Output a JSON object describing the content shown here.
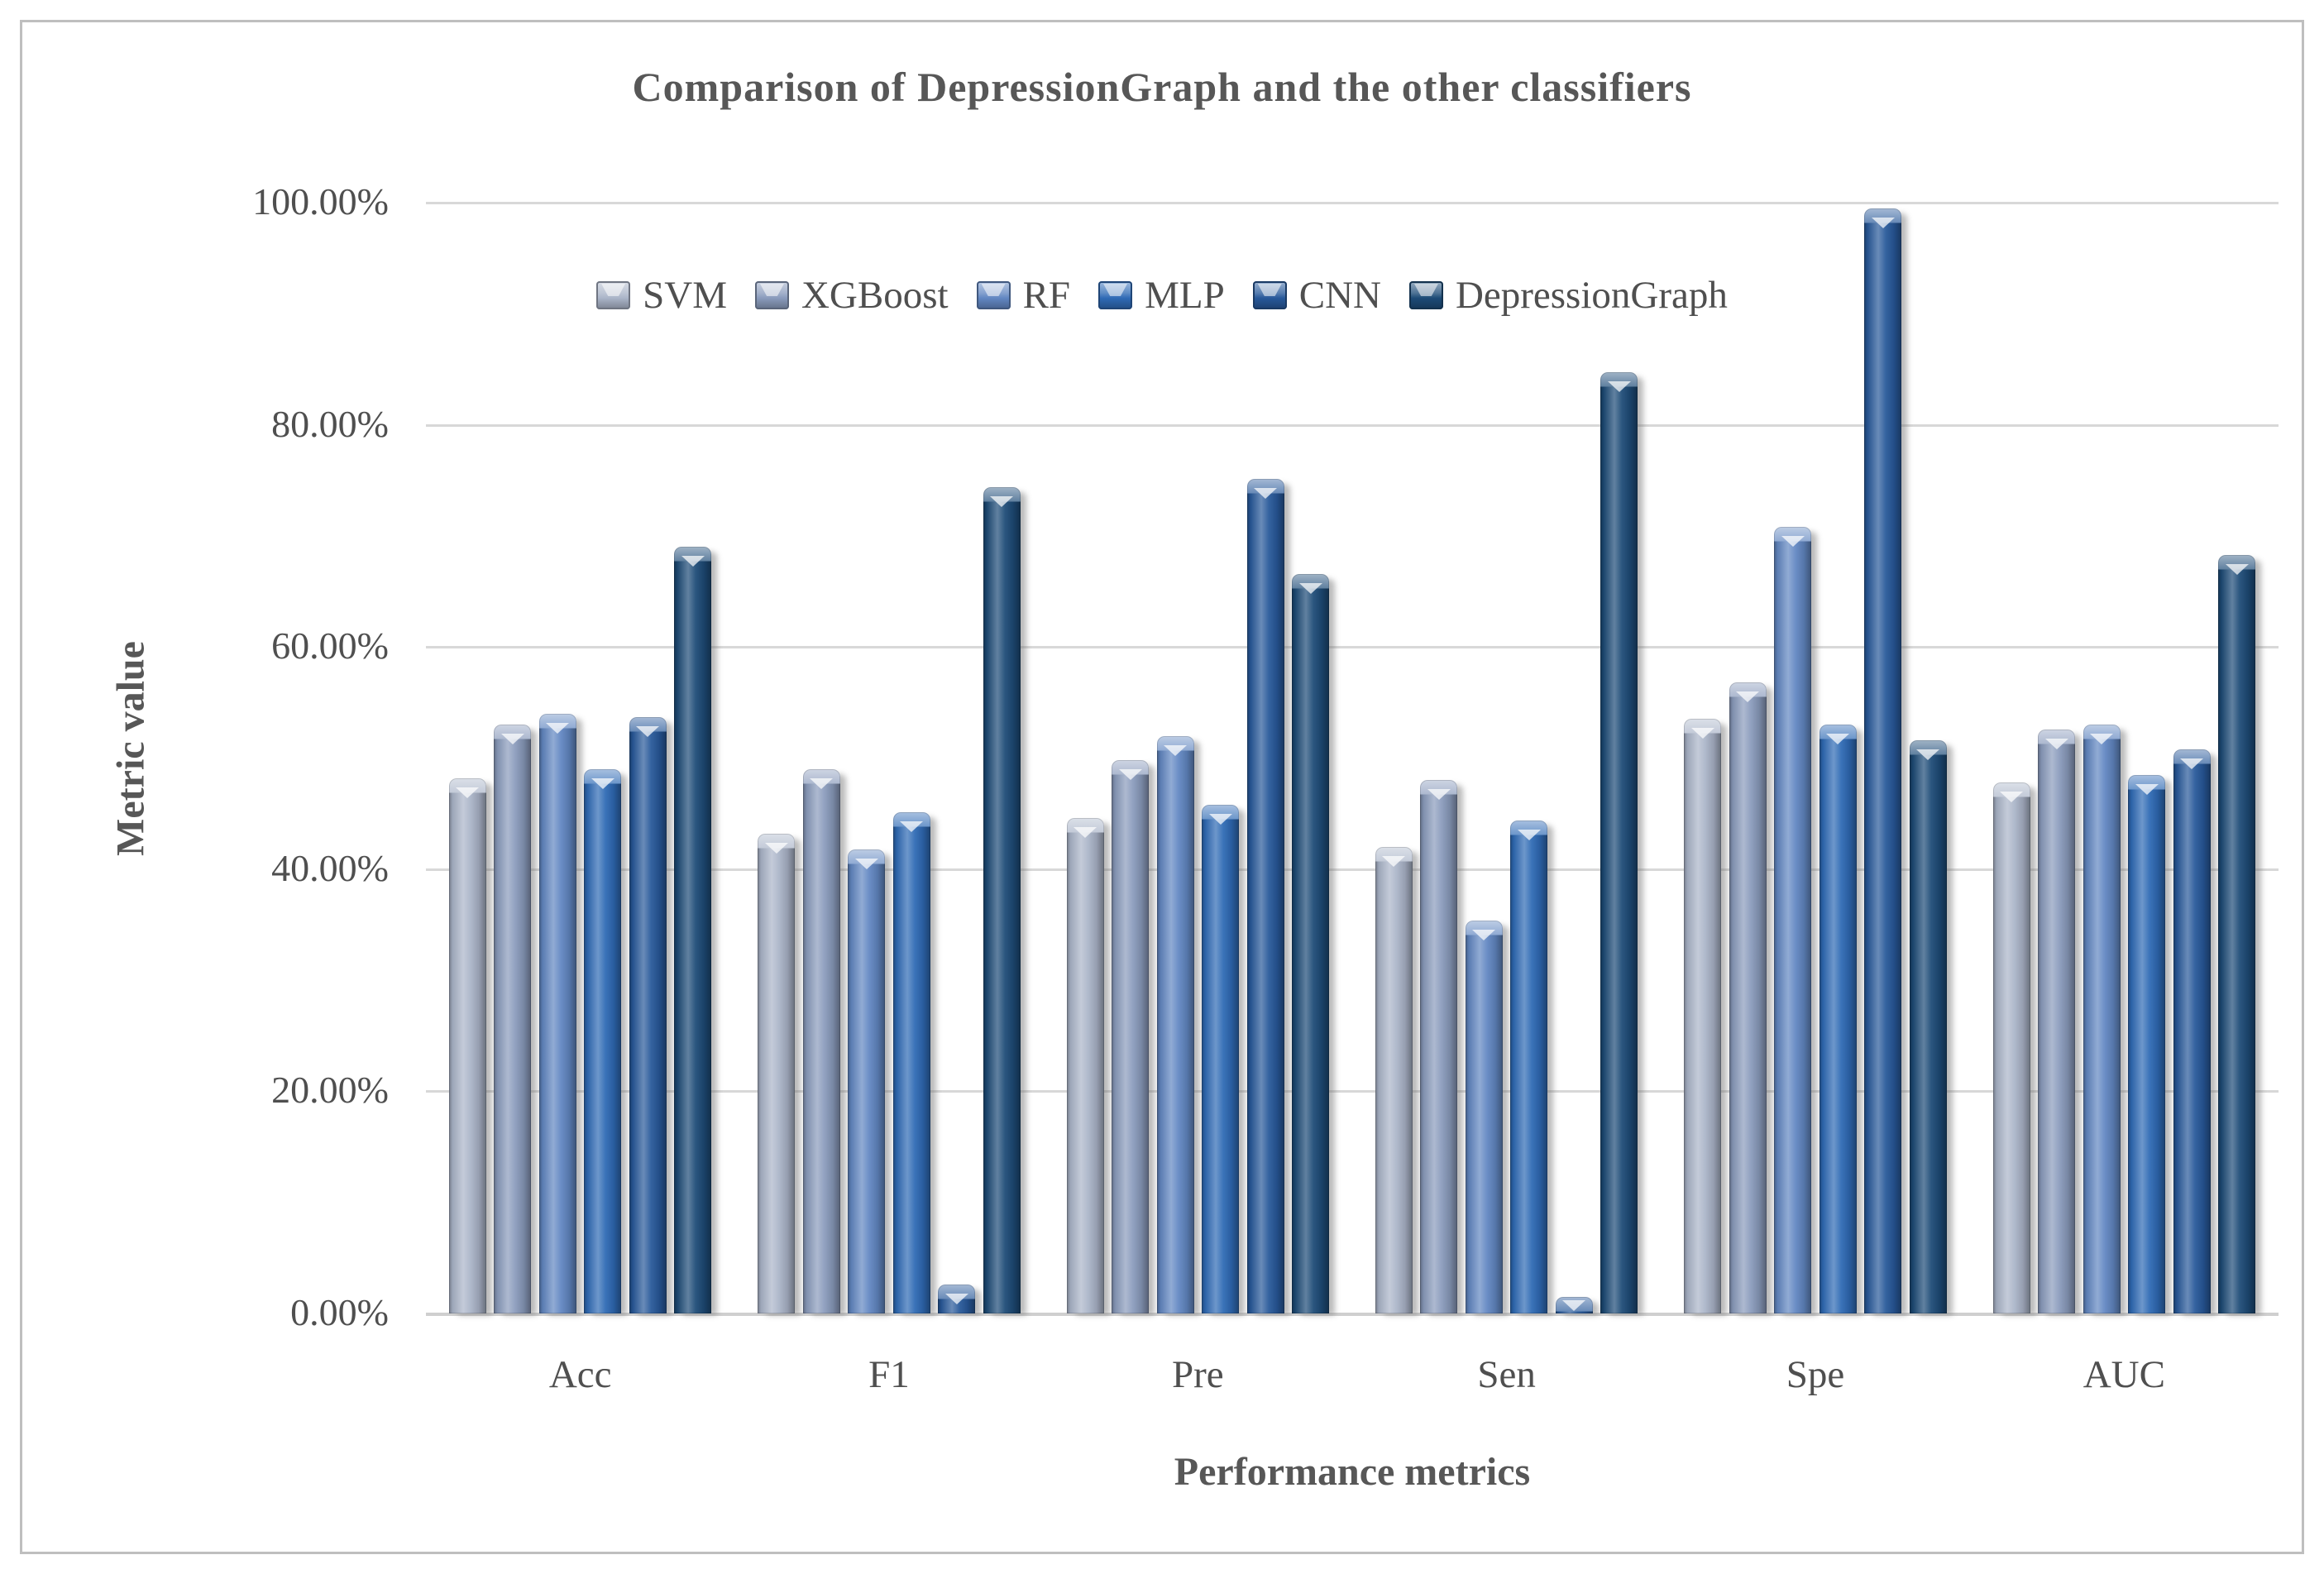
{
  "chart_data": {
    "type": "bar",
    "title": "Comparison of DepressionGraph and the other classifiers",
    "xlabel": "Performance metrics",
    "ylabel": "Metric value",
    "categories": [
      "Acc",
      "F1",
      "Pre",
      "Sen",
      "Spe",
      "AUC"
    ],
    "series": [
      {
        "name": "SVM",
        "color": "#aab4c8",
        "values": [
          48.2,
          43.2,
          44.6,
          42.0,
          53.5,
          47.8
        ]
      },
      {
        "name": "XGBoost",
        "color": "#8a9bbc",
        "values": [
          53.0,
          49.0,
          49.8,
          48.0,
          56.8,
          52.6
        ]
      },
      {
        "name": "RF",
        "color": "#6287c2",
        "values": [
          54.0,
          41.8,
          52.0,
          35.4,
          70.8,
          53.0
        ]
      },
      {
        "name": "MLP",
        "color": "#2f6ab5",
        "values": [
          49.0,
          45.1,
          45.8,
          44.4,
          53.0,
          48.5
        ]
      },
      {
        "name": "CNN",
        "color": "#28599a",
        "values": [
          53.7,
          2.6,
          75.1,
          1.5,
          99.5,
          50.8
        ]
      },
      {
        "name": "DepressionGraph",
        "color": "#1d4b77",
        "values": [
          69.0,
          74.4,
          66.6,
          84.7,
          51.6,
          68.3
        ]
      }
    ],
    "y_ticks": [
      "100.00%",
      "80.00%",
      "60.00%",
      "40.00%",
      "20.00%",
      "0.00%"
    ],
    "ylim": [
      0,
      100
    ],
    "grid": true,
    "legend_position": "top-center-inside"
  }
}
